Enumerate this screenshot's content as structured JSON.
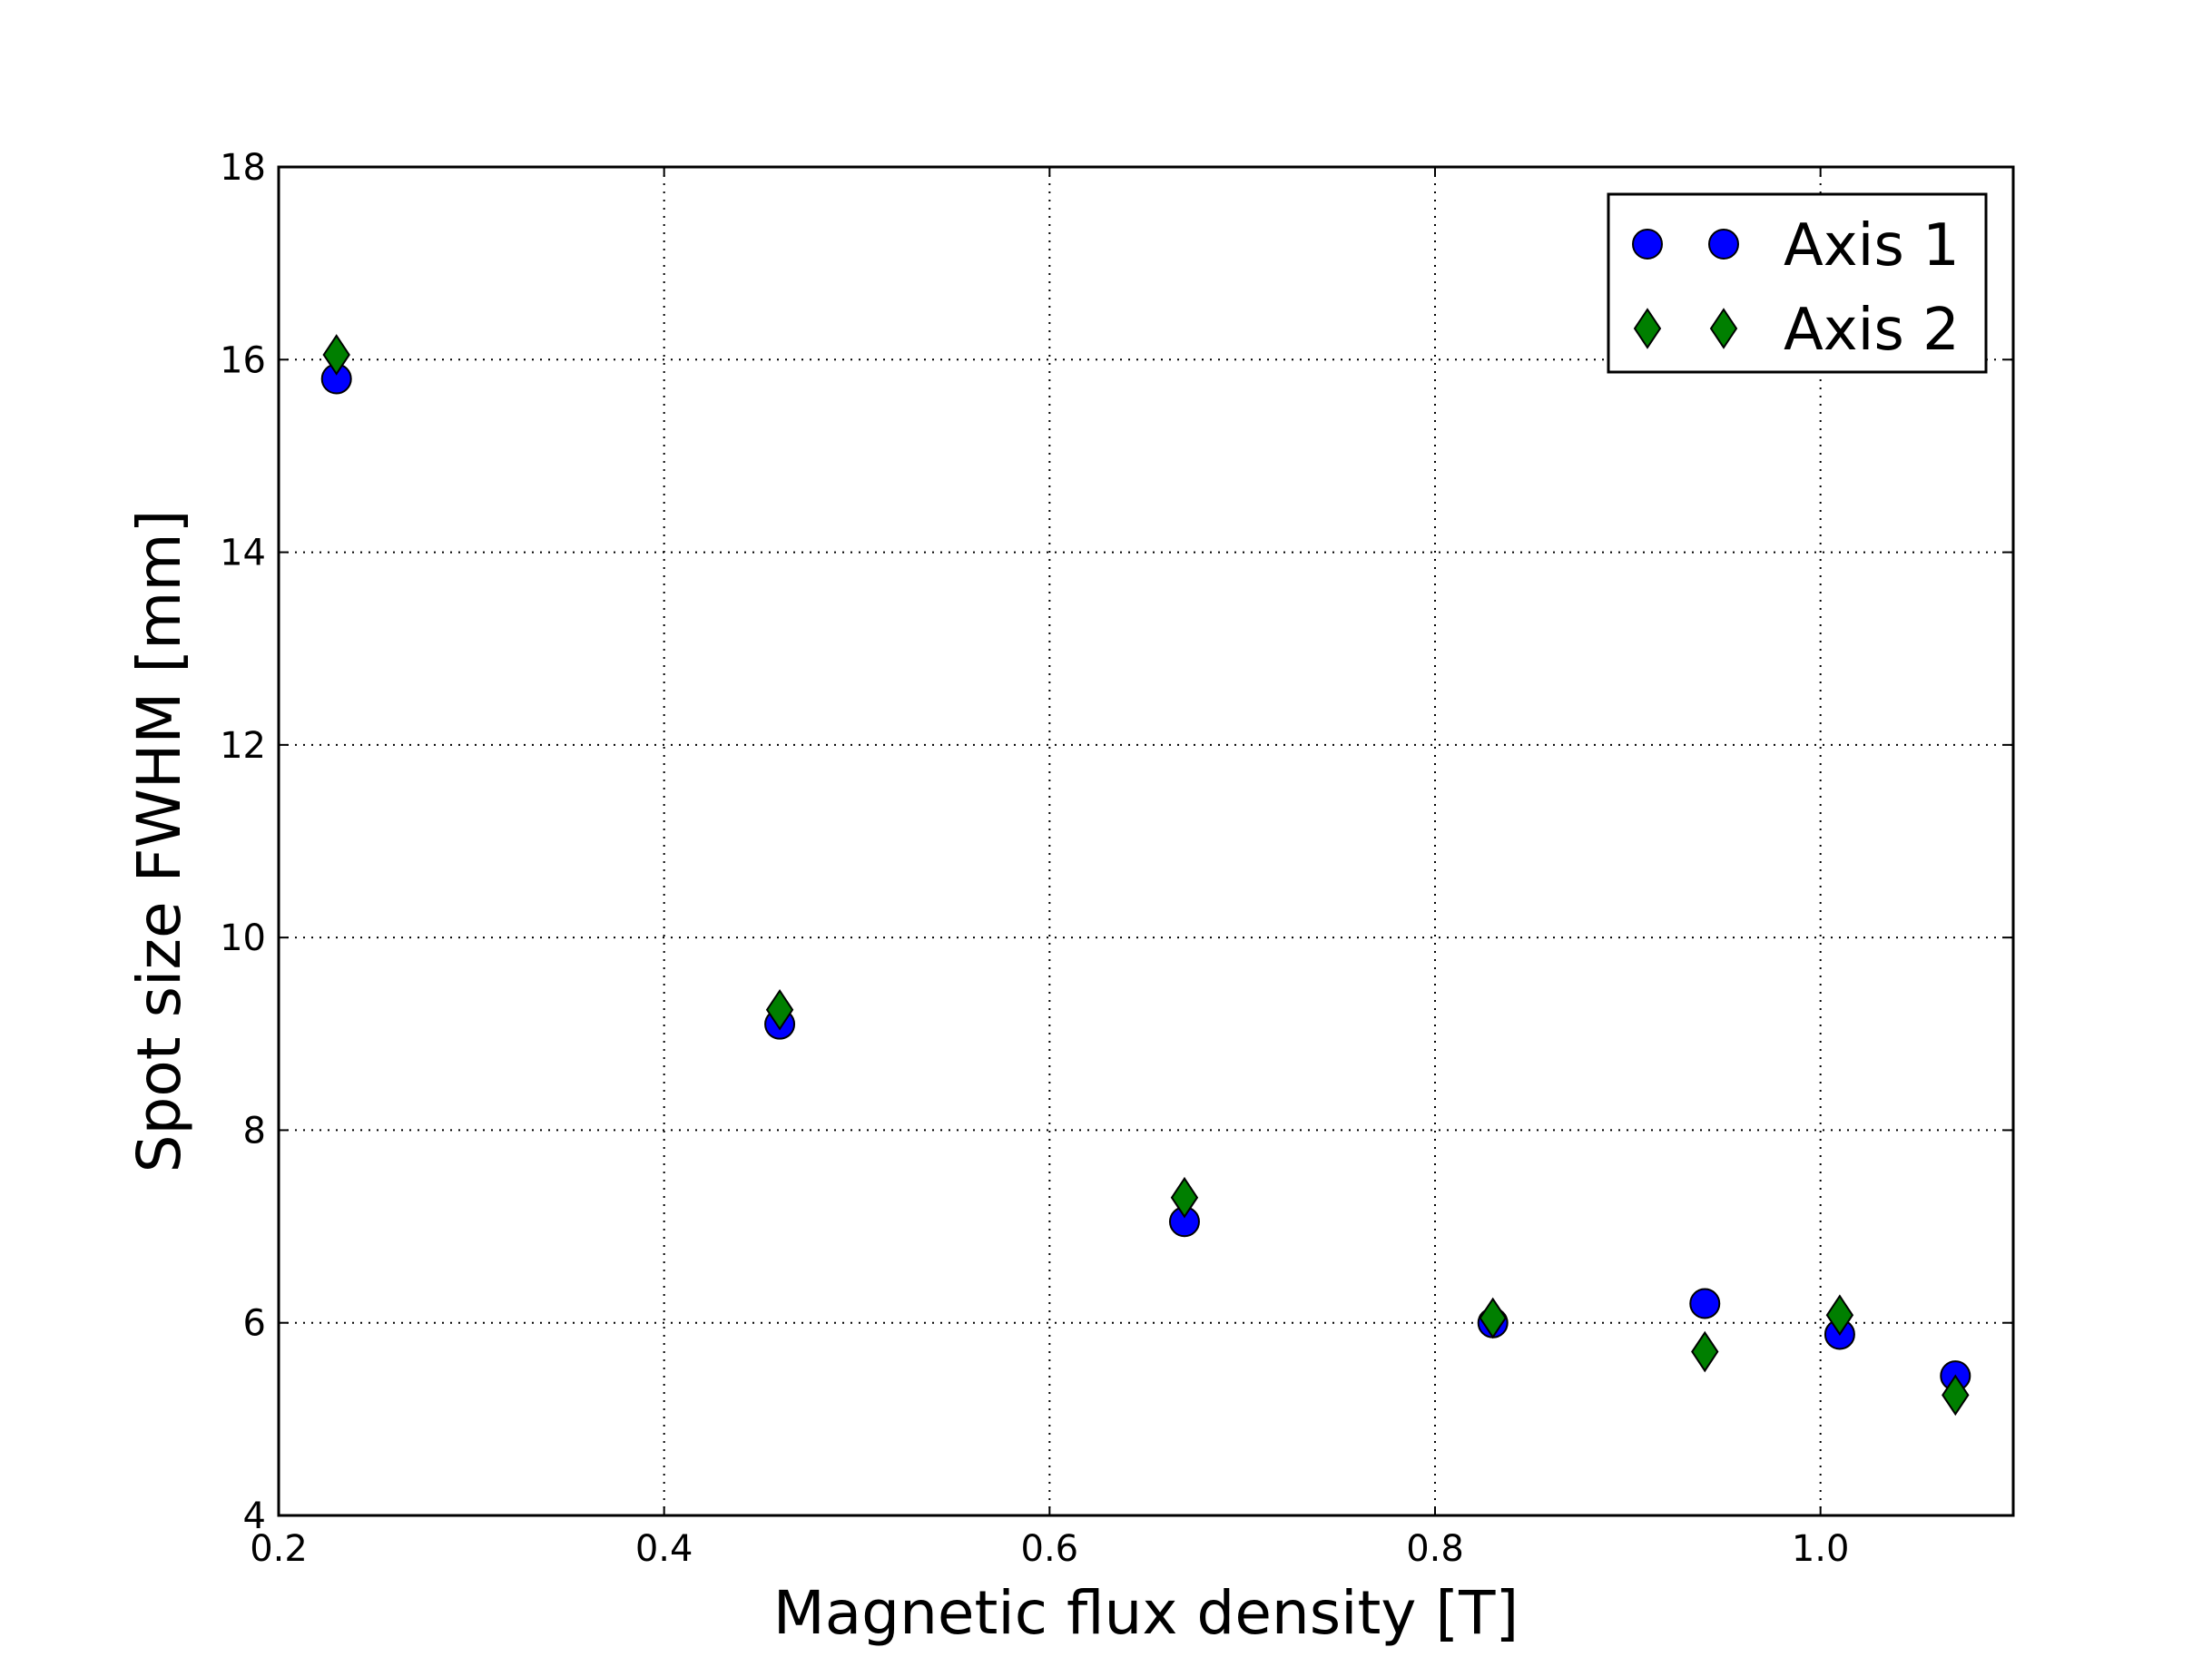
{
  "chart_data": {
    "type": "scatter",
    "xlabel": "Magnetic flux density [T]",
    "ylabel": "Spot size FWHM [mm]",
    "xlim": [
      0.2,
      1.1
    ],
    "ylim": [
      4,
      18
    ],
    "x_ticks": [
      0.2,
      0.4,
      0.6,
      0.8,
      1.0
    ],
    "x_tick_labels": [
      "0.2",
      "0.4",
      "0.6",
      "0.8",
      "1.0"
    ],
    "y_ticks": [
      4,
      6,
      8,
      10,
      12,
      14,
      16,
      18
    ],
    "y_tick_labels": [
      "4",
      "6",
      "8",
      "10",
      "12",
      "14",
      "16",
      "18"
    ],
    "grid": true,
    "legend_position": "top-right",
    "series": [
      {
        "name": "Axis 1",
        "marker": "circle",
        "color": "#0000ff",
        "x": [
          0.23,
          0.46,
          0.67,
          0.83,
          0.94,
          1.01,
          1.07
        ],
        "y": [
          15.8,
          9.1,
          7.05,
          6.0,
          6.2,
          5.88,
          5.45
        ]
      },
      {
        "name": "Axis 2",
        "marker": "diamond",
        "color": "#007f00",
        "x": [
          0.23,
          0.46,
          0.67,
          0.83,
          0.94,
          1.01,
          1.07
        ],
        "y": [
          16.05,
          9.25,
          7.3,
          6.05,
          5.7,
          6.08,
          5.25
        ]
      }
    ]
  }
}
